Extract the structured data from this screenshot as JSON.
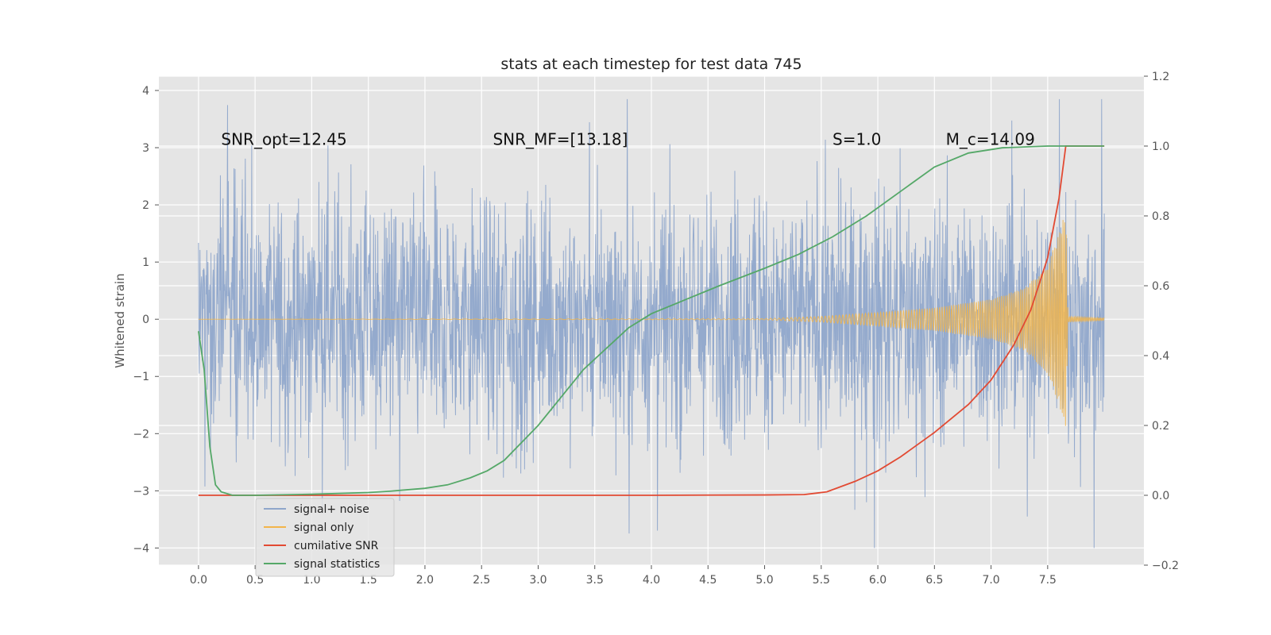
{
  "chart_data": {
    "type": "line",
    "title": "stats at each timestep for test data 745",
    "xlabel": "",
    "ylabel": "Whitened strain",
    "y2label": "",
    "xlim": [
      -0.35,
      8.35
    ],
    "ylim": [
      -4.3,
      4.25
    ],
    "y2lim": [
      -0.2,
      1.2
    ],
    "xticks": [
      "0.0",
      "0.5",
      "1.0",
      "1.5",
      "2.0",
      "2.5",
      "3.0",
      "3.5",
      "4.0",
      "4.5",
      "5.0",
      "5.5",
      "6.0",
      "6.5",
      "7.0",
      "7.5"
    ],
    "yticks": [
      "−4",
      "−3",
      "−2",
      "−1",
      "0",
      "1",
      "2",
      "3",
      "4"
    ],
    "y2ticks": [
      "−0.2",
      "0.0",
      "0.2",
      "0.4",
      "0.6",
      "0.8",
      "1.0",
      "1.2"
    ],
    "grid": true,
    "legend_position": "lower-left",
    "annotations": [
      {
        "text": "SNR_opt=12.45",
        "x": 0.2,
        "y": 3.05
      },
      {
        "text": "SNR_MF=[13.18]",
        "x": 2.6,
        "y": 3.05
      },
      {
        "text": "S=1.0",
        "x": 5.6,
        "y": 3.05
      },
      {
        "text": "M_c=14.09",
        "x": 6.6,
        "y": 3.05
      }
    ],
    "series": [
      {
        "name": "signal+ noise",
        "axis": "left",
        "color": "#8fa6cb",
        "x_range": [
          0.0,
          8.0
        ],
        "typical_envelope": [
          -1.8,
          1.8
        ],
        "peak_range": [
          -4.0,
          3.85
        ]
      },
      {
        "name": "signal only",
        "axis": "left",
        "color": "#f2b54a",
        "x": [
          0.0,
          5.0,
          5.5,
          6.0,
          6.5,
          7.0,
          7.3,
          7.5,
          7.6,
          7.66,
          7.68,
          8.0
        ],
        "amplitude": [
          0.0,
          0.01,
          0.05,
          0.12,
          0.2,
          0.35,
          0.55,
          0.95,
          1.5,
          1.9,
          0.05,
          0.02
        ]
      },
      {
        "name": "cumilative SNR",
        "axis": "right",
        "color": "#e24a33",
        "x": [
          0.0,
          1.0,
          2.0,
          3.0,
          4.0,
          5.0,
          5.35,
          5.55,
          5.8,
          6.0,
          6.2,
          6.5,
          6.8,
          7.0,
          7.2,
          7.35,
          7.5,
          7.6,
          7.66,
          7.68,
          7.9,
          8.0
        ],
        "y": [
          0.0,
          0.0,
          0.0,
          0.0,
          0.0,
          0.001,
          0.002,
          0.01,
          0.04,
          0.07,
          0.11,
          0.18,
          0.26,
          0.33,
          0.43,
          0.53,
          0.68,
          0.85,
          1.0,
          1.0,
          1.0,
          1.0
        ]
      },
      {
        "name": "signal statistics",
        "axis": "right",
        "color": "#55a868",
        "x": [
          0.0,
          0.05,
          0.1,
          0.15,
          0.2,
          0.3,
          0.5,
          1.0,
          1.5,
          1.7,
          2.0,
          2.2,
          2.4,
          2.55,
          2.7,
          2.85,
          3.0,
          3.2,
          3.4,
          3.6,
          3.8,
          4.0,
          4.3,
          4.6,
          5.0,
          5.3,
          5.6,
          5.9,
          6.2,
          6.5,
          6.8,
          7.1,
          7.5,
          7.8,
          8.0
        ],
        "y": [
          0.47,
          0.36,
          0.14,
          0.03,
          0.01,
          0.0,
          0.0,
          0.003,
          0.008,
          0.012,
          0.02,
          0.03,
          0.05,
          0.07,
          0.1,
          0.15,
          0.2,
          0.28,
          0.36,
          0.42,
          0.48,
          0.52,
          0.56,
          0.6,
          0.65,
          0.69,
          0.74,
          0.8,
          0.87,
          0.94,
          0.98,
          0.995,
          1.0,
          1.0,
          1.0
        ]
      }
    ]
  }
}
